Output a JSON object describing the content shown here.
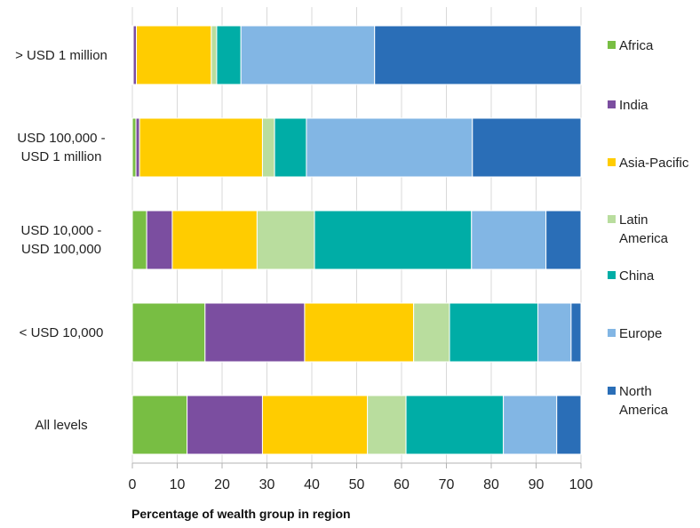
{
  "chart_data": {
    "type": "bar",
    "orientation": "horizontal",
    "stacked": true,
    "categories": [
      [
        "> USD 1 million"
      ],
      [
        "USD 100,000 -",
        "USD 1 million"
      ],
      [
        "USD 10,000 -",
        "USD 100,000"
      ],
      [
        "< USD 10,000"
      ],
      [
        "All levels"
      ]
    ],
    "series": [
      {
        "name": "Africa",
        "color": "#78BE43",
        "values": [
          0.2,
          0.8,
          3.2,
          16.2,
          12.2
        ]
      },
      {
        "name": "India",
        "color": "#7B4EA0",
        "values": [
          0.7,
          0.8,
          5.7,
          22.2,
          16.8
        ]
      },
      {
        "name": "Asia-Pacific",
        "color": "#FFCC00",
        "values": [
          16.7,
          27.4,
          18.9,
          24.3,
          23.4
        ]
      },
      {
        "name": "Latin America",
        "color": "#B9DD9E",
        "values": [
          1.2,
          2.7,
          12.8,
          8.0,
          8.6
        ]
      },
      {
        "name": "China",
        "color": "#00ADA6",
        "values": [
          5.4,
          7.1,
          35.0,
          19.7,
          21.7
        ]
      },
      {
        "name": "Europe",
        "color": "#82B6E4",
        "values": [
          29.8,
          37.0,
          16.6,
          7.4,
          11.9
        ]
      },
      {
        "name": "North America",
        "color": "#2A6EB7",
        "values": [
          46.0,
          24.2,
          7.8,
          2.2,
          5.4
        ]
      }
    ],
    "legend_labels": [
      [
        "Africa"
      ],
      [
        "India"
      ],
      [
        "Asia-Pacific"
      ],
      [
        "Latin",
        "America"
      ],
      [
        "China"
      ],
      [
        "Europe"
      ],
      [
        "North",
        "America"
      ]
    ],
    "xticks": [
      "0",
      "10",
      "20",
      "30",
      "40",
      "50",
      "60",
      "70",
      "80",
      "90",
      "100"
    ],
    "xlim": [
      0,
      100
    ],
    "xlabel": "Percentage of wealth group in region",
    "ylabel": "",
    "title": "",
    "grid": "vertical",
    "legend_position": "right"
  }
}
